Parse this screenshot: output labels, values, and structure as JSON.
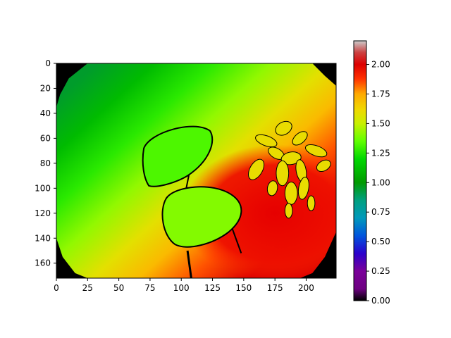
{
  "chart_data": {
    "type": "heatmap",
    "title": "",
    "xlabel": "",
    "ylabel": "",
    "image_size": [
      224,
      172
    ],
    "xlim": [
      0,
      224
    ],
    "ylim": [
      172,
      0
    ],
    "x_ticks": [
      0,
      25,
      50,
      75,
      100,
      125,
      150,
      175,
      200
    ],
    "y_ticks": [
      0,
      20,
      40,
      60,
      80,
      100,
      120,
      140,
      160
    ],
    "colorbar": {
      "colormap": "nipy_spectral",
      "vmin": 0.0,
      "vmax": 2.2,
      "ticks": [
        "0.00",
        "0.25",
        "0.50",
        "0.75",
        "1.00",
        "1.25",
        "1.50",
        "1.75",
        "2.00"
      ],
      "tick_values": [
        0.0,
        0.25,
        0.5,
        0.75,
        1.0,
        1.25,
        1.5,
        1.75,
        2.0
      ],
      "stops": [
        {
          "v": 0.0,
          "color": "#000000"
        },
        {
          "v": 0.1,
          "color": "#6e0082"
        },
        {
          "v": 0.25,
          "color": "#7a0099"
        },
        {
          "v": 0.4,
          "color": "#2a00cc"
        },
        {
          "v": 0.55,
          "color": "#0055dd"
        },
        {
          "v": 0.7,
          "color": "#0099bb"
        },
        {
          "v": 0.85,
          "color": "#00a080"
        },
        {
          "v": 1.0,
          "color": "#009a00"
        },
        {
          "v": 1.2,
          "color": "#00d800"
        },
        {
          "v": 1.35,
          "color": "#60ff00"
        },
        {
          "v": 1.5,
          "color": "#c8f000"
        },
        {
          "v": 1.62,
          "color": "#f0d800"
        },
        {
          "v": 1.75,
          "color": "#ffaa00"
        },
        {
          "v": 1.88,
          "color": "#ff3000"
        },
        {
          "v": 2.0,
          "color": "#dd0000"
        },
        {
          "v": 2.1,
          "color": "#cc4040"
        },
        {
          "v": 2.2,
          "color": "#cccccc"
        }
      ]
    },
    "scene": {
      "background_gradient": {
        "near_value": 2.0,
        "far_value": 0.95
      },
      "regions": [
        {
          "name": "chair-back",
          "value": 1.32
        },
        {
          "name": "chair-seat",
          "value": 1.4
        },
        {
          "name": "plant-leaves",
          "value": 1.6
        },
        {
          "name": "floor-near-plant",
          "value": 2.0
        },
        {
          "name": "invalid-corners",
          "value": 0.0
        }
      ]
    }
  }
}
